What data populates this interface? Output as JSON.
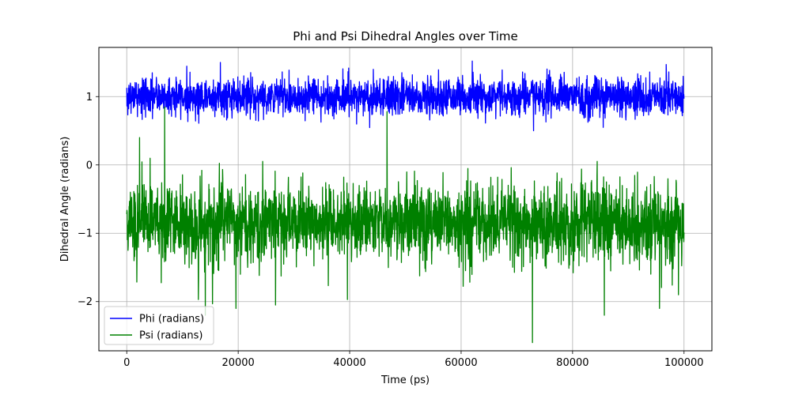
{
  "chart_data": {
    "type": "line",
    "title": "Phi and Psi Dihedral Angles over Time",
    "xlabel": "Time (ps)",
    "ylabel": "Dihedral Angle (radians)",
    "xlim": [
      -5000,
      105000
    ],
    "ylim": [
      -2.72,
      1.72
    ],
    "x_ticks": [
      0,
      20000,
      40000,
      60000,
      80000,
      100000
    ],
    "x_tick_labels": [
      "0",
      "20000",
      "40000",
      "60000",
      "80000",
      "100000"
    ],
    "y_ticks": [
      1,
      0,
      -1,
      -2
    ],
    "y_tick_labels": [
      "1",
      "0",
      "−1",
      "−2"
    ],
    "grid": true,
    "legend_position": "lower-left",
    "x_range": [
      0,
      100000
    ],
    "series": [
      {
        "name": "Phi (radians)",
        "color": "#0000ff",
        "stats": {
          "mean": 1.0,
          "typical_min": 0.72,
          "typical_max": 1.3,
          "min": 0.5,
          "max": 1.52
        },
        "extremes": [
          {
            "x": 16800,
            "y": 1.5
          },
          {
            "x": 62000,
            "y": 1.52
          },
          {
            "x": 96800,
            "y": 1.47
          },
          {
            "x": 73000,
            "y": 0.5
          },
          {
            "x": 85500,
            "y": 0.55
          }
        ]
      },
      {
        "name": "Psi (radians)",
        "color": "#008000",
        "stats": {
          "mean": -0.85,
          "typical_min": -1.42,
          "typical_max": -0.22,
          "min": -2.6,
          "max": 0.9
        },
        "extremes": [
          {
            "x": 6800,
            "y": 0.85
          },
          {
            "x": 46700,
            "y": 0.78
          },
          {
            "x": 2300,
            "y": 0.4
          },
          {
            "x": 14100,
            "y": -2.2
          },
          {
            "x": 19600,
            "y": -2.1
          },
          {
            "x": 26700,
            "y": -2.05
          },
          {
            "x": 39600,
            "y": -1.97
          },
          {
            "x": 72800,
            "y": -2.6
          },
          {
            "x": 85700,
            "y": -2.2
          },
          {
            "x": 95600,
            "y": -2.1
          },
          {
            "x": 99000,
            "y": -1.9
          }
        ]
      }
    ]
  }
}
